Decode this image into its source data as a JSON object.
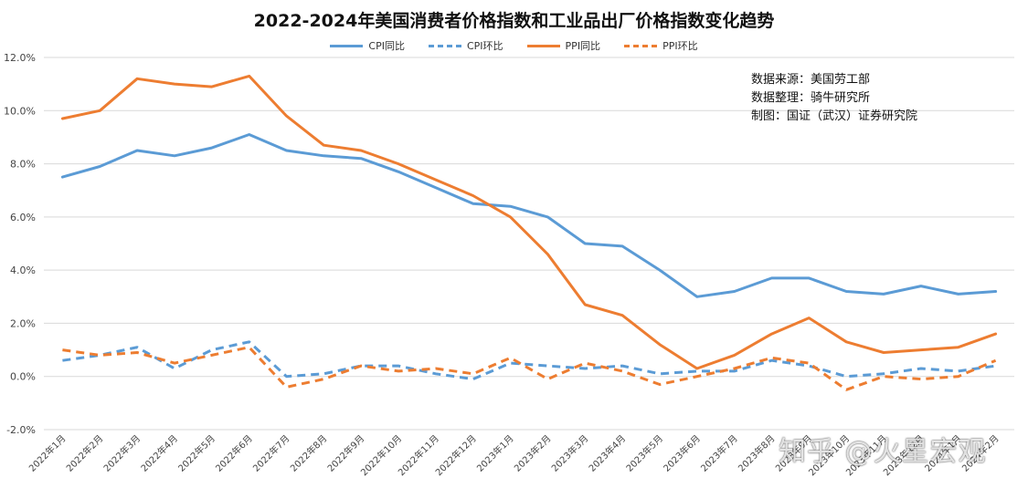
{
  "chart_data": {
    "type": "line",
    "title": "2022-2024年美国消费者价格指数和工业品出厂价格指数变化趋势",
    "categories": [
      "2022年1月",
      "2022年2月",
      "2022年3月",
      "2022年4月",
      "2022年5月",
      "2022年6月",
      "2022年7月",
      "2022年8月",
      "2022年9月",
      "2022年10月",
      "2022年11月",
      "2022年12月",
      "2023年1月",
      "2023年2月",
      "2023年3月",
      "2023年4月",
      "2023年5月",
      "2023年6月",
      "2023年7月",
      "2023年8月",
      "2023年9月",
      "2023年10月",
      "2023年11月",
      "2023年12月",
      "2024年1月",
      "2024年2月"
    ],
    "ylim": [
      -2.0,
      12.0
    ],
    "yticks": [
      "12.0%",
      "10.0%",
      "8.0%",
      "6.0%",
      "4.0%",
      "2.0%",
      "0.0%",
      "-2.0%"
    ],
    "ytick_values": [
      12,
      10,
      8,
      6,
      4,
      2,
      0,
      -2
    ],
    "grid": true,
    "legend_position": "top",
    "series": [
      {
        "name": "CPI同比",
        "color": "#5b9bd5",
        "dash": "solid",
        "values": [
          7.5,
          7.9,
          8.5,
          8.3,
          8.6,
          9.1,
          8.5,
          8.3,
          8.2,
          7.7,
          7.1,
          6.5,
          6.4,
          6.0,
          5.0,
          4.9,
          4.0,
          3.0,
          3.2,
          3.7,
          3.7,
          3.2,
          3.1,
          3.4,
          3.1,
          3.2
        ]
      },
      {
        "name": "CPI环比",
        "color": "#5b9bd5",
        "dash": "dashed",
        "values": [
          0.6,
          0.8,
          1.1,
          0.3,
          1.0,
          1.3,
          0.0,
          0.1,
          0.4,
          0.4,
          0.1,
          -0.1,
          0.5,
          0.4,
          0.3,
          0.4,
          0.1,
          0.2,
          0.2,
          0.6,
          0.4,
          0.0,
          0.1,
          0.3,
          0.2,
          0.4
        ]
      },
      {
        "name": "PPI同比",
        "color": "#ed7d31",
        "dash": "solid",
        "values": [
          9.7,
          10.0,
          11.2,
          11.0,
          10.9,
          11.3,
          9.8,
          8.7,
          8.5,
          8.0,
          7.4,
          6.8,
          6.0,
          4.6,
          2.7,
          2.3,
          1.2,
          0.3,
          0.8,
          1.6,
          2.2,
          1.3,
          0.9,
          1.0,
          1.1,
          1.6
        ]
      },
      {
        "name": "PPI环比",
        "color": "#ed7d31",
        "dash": "dashed",
        "values": [
          1.0,
          0.8,
          0.9,
          0.5,
          0.8,
          1.1,
          -0.4,
          -0.1,
          0.4,
          0.2,
          0.3,
          0.1,
          0.7,
          -0.1,
          0.5,
          0.2,
          -0.3,
          0.0,
          0.3,
          0.7,
          0.5,
          -0.5,
          0.0,
          -0.1,
          0.0,
          0.6
        ]
      }
    ],
    "annotations": [
      "数据来源：美国劳工部",
      "数据整理：骑牛研究所",
      "制图：国证（武汉）证券研究院"
    ]
  },
  "watermark": "知乎 @火星宏观"
}
